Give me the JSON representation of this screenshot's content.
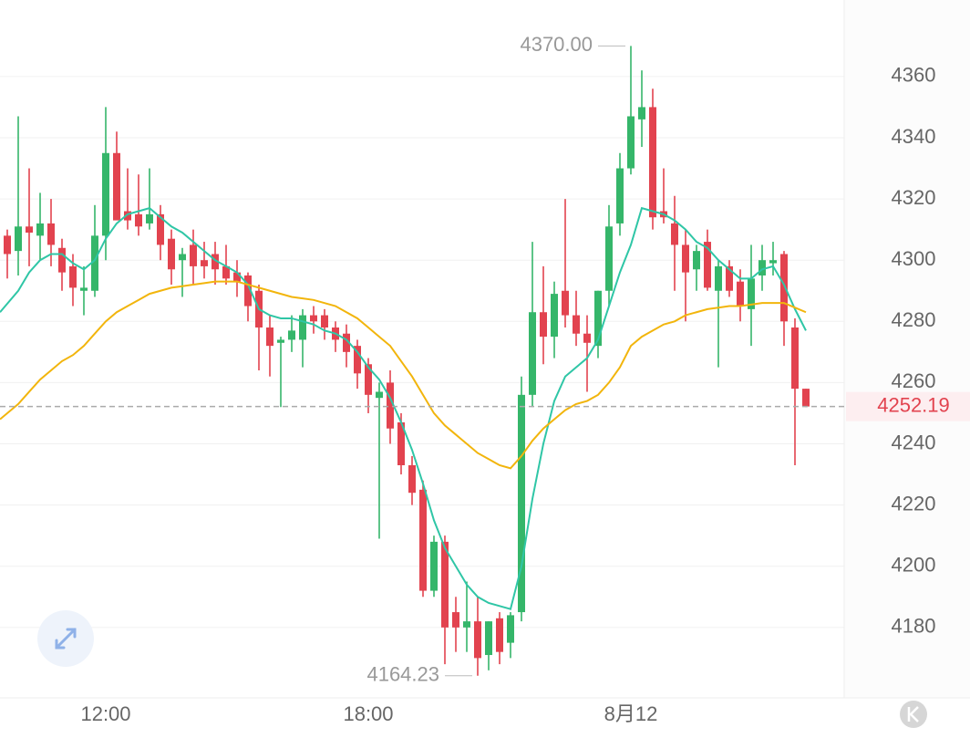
{
  "chart_data": {
    "type": "candlestick",
    "categories": [
      null,
      null,
      null,
      null,
      null,
      null,
      null,
      null,
      null,
      "12:00",
      null,
      null,
      null,
      null,
      null,
      null,
      null,
      null,
      null,
      null,
      null,
      null,
      null,
      null,
      null,
      null,
      null,
      null,
      null,
      null,
      null,
      null,
      null,
      "18:00",
      null,
      null,
      null,
      null,
      null,
      null,
      null,
      null,
      null,
      null,
      null,
      null,
      null,
      null,
      null,
      null,
      null,
      null,
      null,
      null,
      null,
      null,
      null,
      "8月12",
      null,
      null,
      null,
      null,
      null,
      null,
      null,
      null,
      null,
      null,
      null,
      null,
      null,
      null,
      null,
      null
    ],
    "open": [
      4308,
      4303,
      4311,
      4308,
      4312,
      4304,
      4298,
      4290,
      4290,
      4308,
      4335,
      4316,
      4315,
      4312,
      4315,
      4307,
      4300,
      4305,
      4300,
      4302,
      4298,
      4296,
      4295,
      4290,
      4278,
      4273,
      4274,
      4274,
      4282,
      4282,
      4278,
      4276,
      4272,
      4266,
      4255,
      4260,
      4247,
      4233,
      4225,
      4192,
      4208,
      4185,
      4180,
      4182,
      4171,
      4183,
      4175,
      4185,
      4256,
      4283,
      4275,
      4290,
      4282,
      4276,
      4272,
      4290,
      4312,
      4330,
      4346,
      4350,
      4316,
      4312,
      4305,
      4297,
      4306,
      4290,
      4298,
      4293,
      4284,
      4295,
      4299,
      4302,
      4278,
      4258
    ],
    "high": [
      4310,
      4347,
      4330,
      4322,
      4320,
      4307,
      4302,
      4298,
      4318,
      4350,
      4342,
      4330,
      4328,
      4330,
      4318,
      4310,
      4304,
      4310,
      4306,
      4306,
      4305,
      4300,
      4296,
      4292,
      4282,
      4275,
      4282,
      4284,
      4285,
      4284,
      4280,
      4279,
      4274,
      4268,
      4260,
      4264,
      4250,
      4236,
      4228,
      4210,
      4210,
      4190,
      4195,
      4190,
      4182,
      4185,
      4185,
      4262,
      4306,
      4298,
      4293,
      4320,
      4290,
      4282,
      4290,
      4318,
      4335,
      4370,
      4362,
      4356,
      4330,
      4321,
      4310,
      4305,
      4310,
      4300,
      4300,
      4297,
      4305,
      4305,
      4306,
      4303,
      4281,
      4258
    ],
    "low": [
      4294,
      4295,
      4298,
      4300,
      4298,
      4290,
      4285,
      4282,
      4288,
      4300,
      4315,
      4310,
      4308,
      4310,
      4300,
      4292,
      4288,
      4292,
      4294,
      4292,
      4292,
      4288,
      4280,
      4264,
      4262,
      4252,
      4270,
      4265,
      4276,
      4274,
      4270,
      4265,
      4258,
      4250,
      4209,
      4240,
      4230,
      4220,
      4190,
      4190,
      4168,
      4172,
      4172,
      4164.23,
      4166,
      4168,
      4170,
      4182,
      4252,
      4266,
      4268,
      4278,
      4272,
      4257,
      4268,
      4285,
      4308,
      4328,
      4337,
      4310,
      4312,
      4290,
      4280,
      4290,
      4290,
      4265,
      4288,
      4280,
      4272,
      4290,
      4295,
      4272,
      4233,
      4252
    ],
    "close": [
      4302,
      4311,
      4309,
      4312,
      4305,
      4296,
      4291,
      4291,
      4308,
      4335,
      4313,
      4313,
      4311,
      4315,
      4305,
      4297,
      4302,
      4298,
      4298,
      4297,
      4294,
      4293,
      4285,
      4278,
      4272,
      4274,
      4277,
      4282,
      4280,
      4278,
      4274,
      4270,
      4263,
      4256,
      4257,
      4245,
      4233,
      4224,
      4192,
      4208,
      4180,
      4180,
      4182,
      4170,
      4182,
      4172,
      4184,
      4256,
      4283,
      4275,
      4289,
      4282,
      4276,
      4273,
      4290,
      4311,
      4330,
      4347,
      4350,
      4314,
      4314,
      4305,
      4296,
      4303,
      4291,
      4298,
      4290,
      4285,
      4294,
      4300,
      4300,
      4280,
      4258,
      4252.19
    ],
    "up_color": "#35b66a",
    "down_color": "#e2434f",
    "lines": [
      {
        "color": "#2fc6a6",
        "values": [
          4283,
          4290,
          4296,
          4300,
          4302,
          4302,
          4299,
          4297,
          4300,
          4307,
          4312,
          4315,
          4316,
          4317,
          4314,
          4311,
          4309,
          4306,
          4303,
          4300,
          4298,
          4296,
          4292,
          4284,
          4282,
          4281,
          4281,
          4280,
          4279,
          4277,
          4276,
          4274,
          4270,
          4265,
          4261,
          4255,
          4247,
          4238,
          4227,
          4215,
          4206,
          4200,
          4194,
          4190,
          4188,
          4187,
          4186,
          4200,
          4222,
          4240,
          4254,
          4262,
          4265,
          4268,
          4274,
          4285,
          4296,
          4305,
          4317,
          4316,
          4315,
          4313,
          4310,
          4306,
          4304,
          4300,
          4297,
          4294,
          4294,
          4297,
          4298,
          4292,
          4284,
          4277
        ]
      },
      {
        "color": "#f2b50c",
        "values": [
          4248,
          4253,
          4257,
          4261,
          4264,
          4267,
          4269,
          4272,
          4276,
          4280,
          4283,
          4285,
          4287,
          4289,
          4290,
          4291,
          4291.5,
          4292,
          4292.5,
          4293,
          4293,
          4293,
          4292,
          4291,
          4290,
          4289,
          4288,
          4287.5,
          4287,
          4286,
          4285,
          4283,
          4281,
          4278,
          4275,
          4272,
          4267,
          4262,
          4256,
          4250,
          4246,
          4243,
          4240,
          4237,
          4235,
          4233,
          4232,
          4236,
          4241,
          4245,
          4248,
          4251,
          4253,
          4254,
          4256,
          4260,
          4265,
          4272,
          4275,
          4277,
          4279,
          4280,
          4282,
          4283,
          4284,
          4284.5,
          4285,
          4285,
          4285.5,
          4286,
          4286,
          4286,
          4284.5,
          4283
        ]
      }
    ],
    "ylim": [
      4157,
      4385
    ],
    "yticks": [
      4180,
      4200,
      4220,
      4240,
      4260,
      4280,
      4300,
      4320,
      4340,
      4360
    ],
    "grid": true,
    "high_label": {
      "value": 4370,
      "label": "4370.00"
    },
    "low_label": 4164.23,
    "last_price": 4252.19
  }
}
